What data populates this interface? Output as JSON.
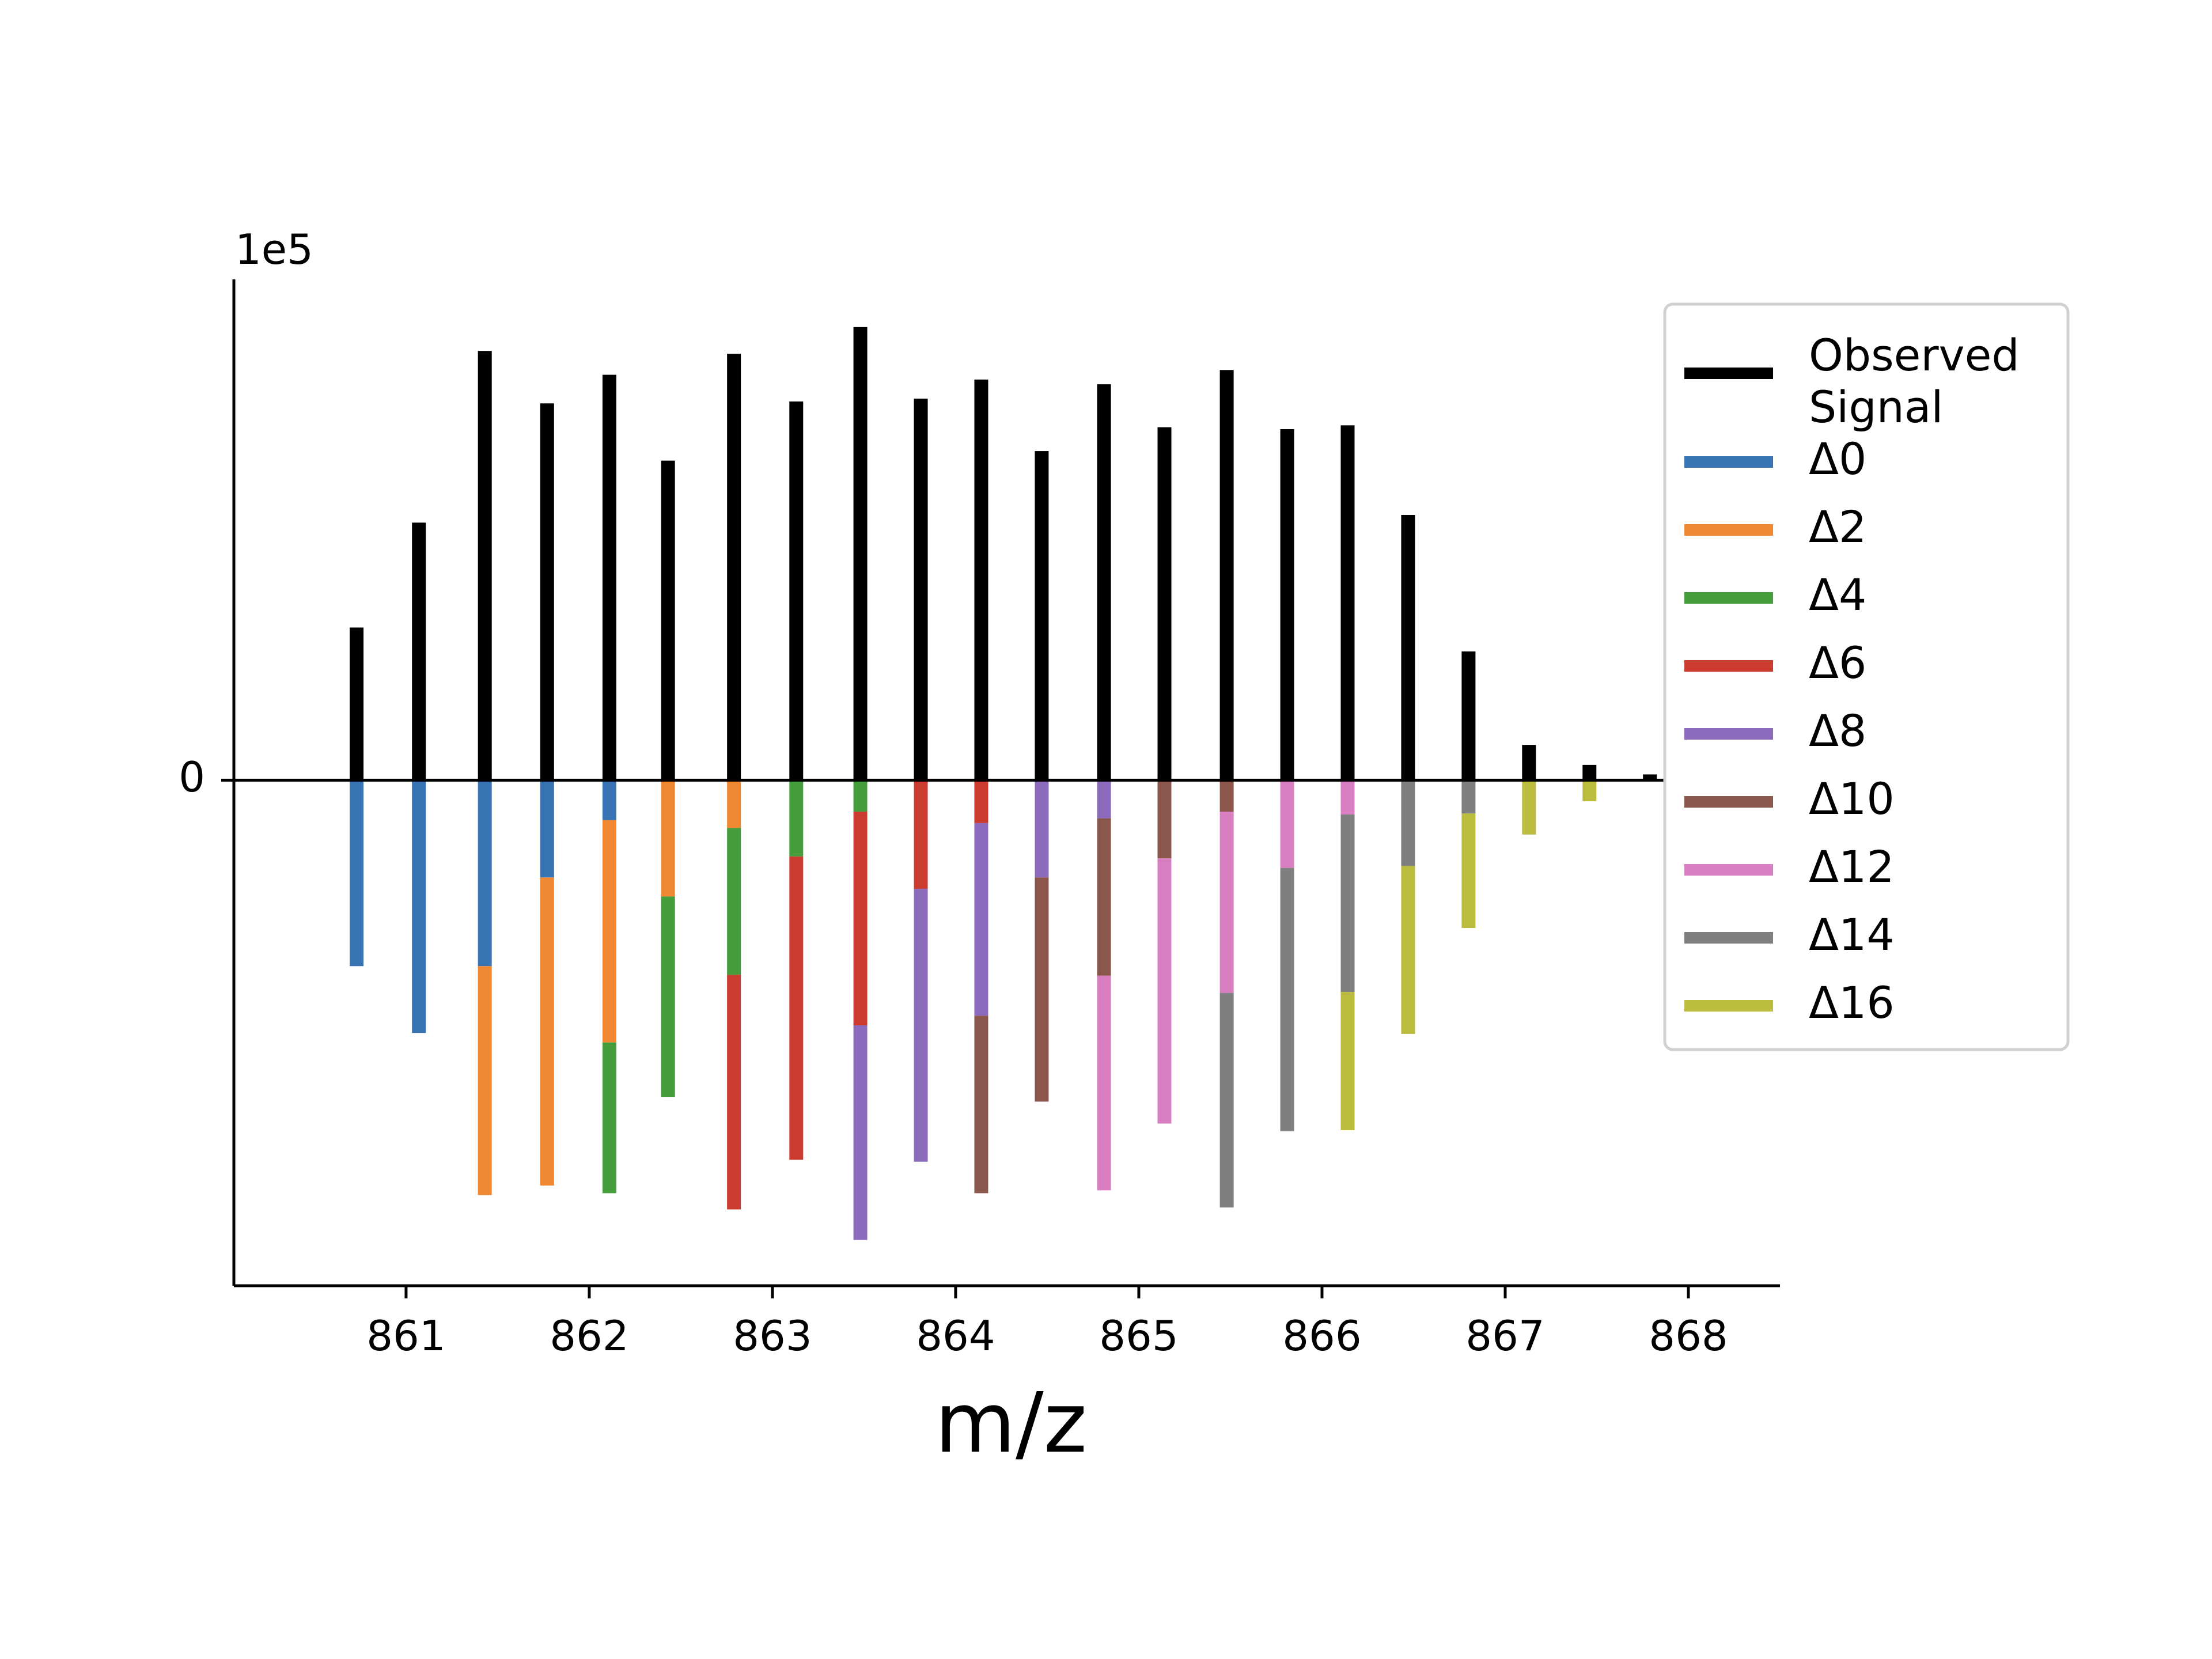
{
  "chart_data": {
    "type": "bar",
    "title": "",
    "xlabel": "m/z",
    "ylabel": "",
    "y_scale_label": "1e5",
    "y_zero_label": "0",
    "xlim": [
      860.06,
      868.5
    ],
    "ylim": [
      -5.3,
      5.25
    ],
    "x_ticks": [
      861,
      862,
      863,
      864,
      865,
      866,
      867,
      868
    ],
    "x_tick_labels": [
      "861",
      "862",
      "863",
      "864",
      "865",
      "866",
      "867",
      "868"
    ],
    "observed": {
      "name": "Observed Signal",
      "color": "#000000",
      "x": [
        860.73,
        861.07,
        861.43,
        861.77,
        862.11,
        862.43,
        862.79,
        863.13,
        863.48,
        863.81,
        864.14,
        864.47,
        864.81,
        865.14,
        865.48,
        865.81,
        866.14,
        866.47,
        866.8,
        867.13,
        867.46,
        867.79
      ],
      "values": [
        1.6,
        2.7,
        4.5,
        3.95,
        4.25,
        3.35,
        4.47,
        3.97,
        4.75,
        4.0,
        4.2,
        3.45,
        4.15,
        3.7,
        4.3,
        3.68,
        3.72,
        2.78,
        1.35,
        0.37,
        0.16,
        0.06
      ]
    },
    "legend_position": "right",
    "series": [
      {
        "name": "Δ0",
        "color": "#3874b3"
      },
      {
        "name": "Δ2",
        "color": "#ef8733"
      },
      {
        "name": "Δ4",
        "color": "#459d3c"
      },
      {
        "name": "Δ6",
        "color": "#cc3b2f"
      },
      {
        "name": "Δ8",
        "color": "#8c6bbd"
      },
      {
        "name": "Δ10",
        "color": "#8b574c"
      },
      {
        "name": "Δ12",
        "color": "#d97fc1"
      },
      {
        "name": "Δ14",
        "color": "#7f7f7f"
      },
      {
        "name": "Δ16",
        "color": "#bcbc3e"
      }
    ],
    "decomposition": [
      {
        "x": 860.73,
        "segments": [
          1.95
        ]
      },
      {
        "x": 861.07,
        "segments": [
          2.65
        ]
      },
      {
        "x": 861.43,
        "segments": [
          1.95,
          2.4
        ]
      },
      {
        "x": 861.77,
        "segments": [
          1.02,
          3.23
        ]
      },
      {
        "x": 862.11,
        "segments": [
          0.42,
          2.33,
          1.58
        ]
      },
      {
        "x": 862.43,
        "segments": [
          0,
          1.22,
          2.1
        ]
      },
      {
        "x": 862.79,
        "segments": [
          0,
          0.5,
          1.54,
          2.46
        ]
      },
      {
        "x": 863.13,
        "segments": [
          0,
          0,
          0.8,
          3.18
        ]
      },
      {
        "x": 863.48,
        "segments": [
          0,
          0,
          0.33,
          2.24,
          2.25
        ]
      },
      {
        "x": 863.81,
        "segments": [
          0,
          0,
          0,
          1.14,
          2.86
        ]
      },
      {
        "x": 864.14,
        "segments": [
          0,
          0,
          0,
          0.45,
          2.02,
          1.86
        ]
      },
      {
        "x": 864.47,
        "segments": [
          0,
          0,
          0,
          0,
          1.02,
          2.35
        ]
      },
      {
        "x": 864.81,
        "segments": [
          0,
          0,
          0,
          0,
          0.4,
          1.65,
          2.25
        ]
      },
      {
        "x": 865.14,
        "segments": [
          0,
          0,
          0,
          0,
          0,
          0.82,
          2.78
        ]
      },
      {
        "x": 865.48,
        "segments": [
          0,
          0,
          0,
          0,
          0,
          0.33,
          1.9,
          2.25
        ]
      },
      {
        "x": 865.81,
        "segments": [
          0,
          0,
          0,
          0,
          0,
          0,
          0.92,
          2.76
        ]
      },
      {
        "x": 866.14,
        "segments": [
          0,
          0,
          0,
          0,
          0,
          0,
          0.36,
          1.86,
          1.45
        ]
      },
      {
        "x": 866.47,
        "segments": [
          0,
          0,
          0,
          0,
          0,
          0,
          0,
          0.9,
          1.76
        ]
      },
      {
        "x": 866.8,
        "segments": [
          0,
          0,
          0,
          0,
          0,
          0,
          0,
          0.35,
          1.2
        ]
      },
      {
        "x": 867.13,
        "segments": [
          0,
          0,
          0,
          0,
          0,
          0,
          0,
          0,
          0.57
        ]
      },
      {
        "x": 867.46,
        "segments": [
          0,
          0,
          0,
          0,
          0,
          0,
          0,
          0,
          0.22
        ]
      }
    ]
  }
}
